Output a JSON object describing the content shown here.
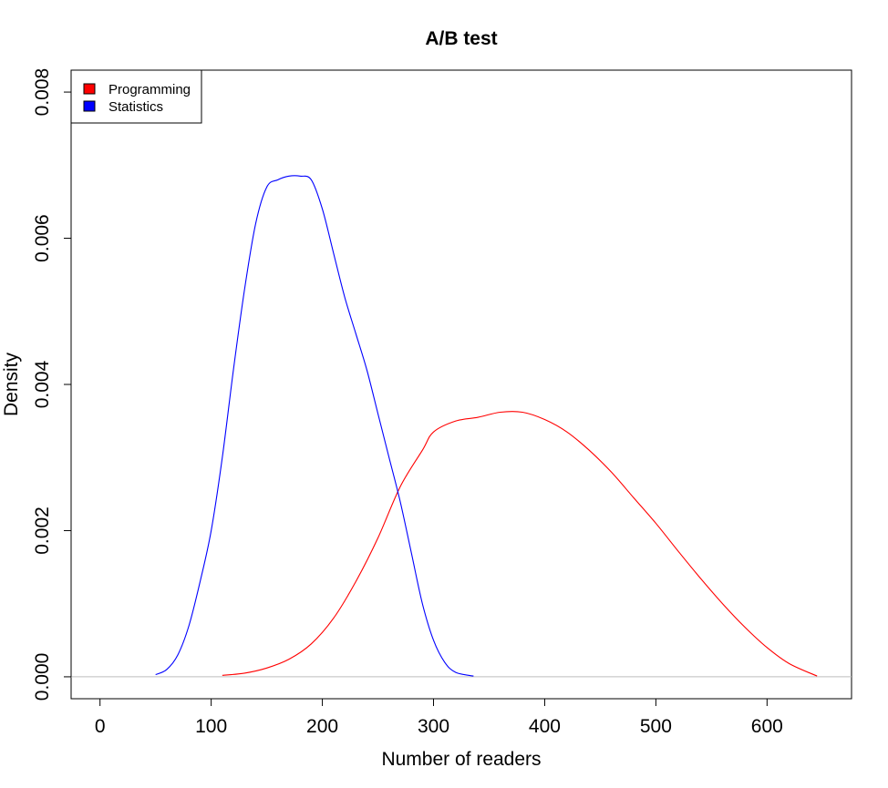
{
  "chart_data": {
    "type": "line",
    "title": "A/B test",
    "xlabel": "Number of readers",
    "ylabel": "Density",
    "xlim": [
      -26,
      676
    ],
    "ylim": [
      -0.0003,
      0.0083
    ],
    "x_ticks": [
      0,
      100,
      200,
      300,
      400,
      500,
      600
    ],
    "x_tick_labels": [
      "0",
      "100",
      "200",
      "300",
      "400",
      "500",
      "600"
    ],
    "y_ticks": [
      0,
      0.002,
      0.004,
      0.006,
      0.008
    ],
    "y_tick_labels": [
      "0.000",
      "0.002",
      "0.004",
      "0.006",
      "0.008"
    ],
    "baseline": 0,
    "baseline_color": "#bebebe",
    "grid": false,
    "legend_position": "top-left",
    "series": [
      {
        "name": "Programming",
        "color": "#ff0000",
        "points": [
          [
            110,
            2e-05
          ],
          [
            130,
            5e-05
          ],
          [
            150,
            0.00012
          ],
          [
            170,
            0.00024
          ],
          [
            190,
            0.00045
          ],
          [
            210,
            0.0008
          ],
          [
            230,
            0.0013
          ],
          [
            250,
            0.0019
          ],
          [
            270,
            0.0026
          ],
          [
            290,
            0.0031
          ],
          [
            300,
            0.00335
          ],
          [
            320,
            0.0035
          ],
          [
            340,
            0.00355
          ],
          [
            360,
            0.00362
          ],
          [
            380,
            0.00362
          ],
          [
            400,
            0.00352
          ],
          [
            420,
            0.00335
          ],
          [
            440,
            0.0031
          ],
          [
            460,
            0.0028
          ],
          [
            480,
            0.00245
          ],
          [
            500,
            0.0021
          ],
          [
            520,
            0.00172
          ],
          [
            540,
            0.00135
          ],
          [
            560,
            0.001
          ],
          [
            580,
            0.00068
          ],
          [
            600,
            0.0004
          ],
          [
            620,
            0.00018
          ],
          [
            645,
            1e-05
          ]
        ]
      },
      {
        "name": "Statistics",
        "color": "#0000ff",
        "points": [
          [
            50,
            3e-05
          ],
          [
            60,
            0.0001
          ],
          [
            70,
            0.0003
          ],
          [
            80,
            0.0007
          ],
          [
            90,
            0.0013
          ],
          [
            100,
            0.002
          ],
          [
            110,
            0.003
          ],
          [
            120,
            0.0042
          ],
          [
            130,
            0.0053
          ],
          [
            140,
            0.0062
          ],
          [
            150,
            0.0067
          ],
          [
            160,
            0.0068
          ],
          [
            170,
            0.00685
          ],
          [
            180,
            0.00685
          ],
          [
            190,
            0.0068
          ],
          [
            200,
            0.0064
          ],
          [
            210,
            0.0058
          ],
          [
            220,
            0.0052
          ],
          [
            230,
            0.0047
          ],
          [
            240,
            0.0042
          ],
          [
            250,
            0.0036
          ],
          [
            260,
            0.003
          ],
          [
            270,
            0.0024
          ],
          [
            280,
            0.0017
          ],
          [
            290,
            0.001
          ],
          [
            300,
            0.0005
          ],
          [
            310,
            0.0002
          ],
          [
            320,
            6e-05
          ],
          [
            336,
            1e-05
          ]
        ]
      }
    ]
  }
}
